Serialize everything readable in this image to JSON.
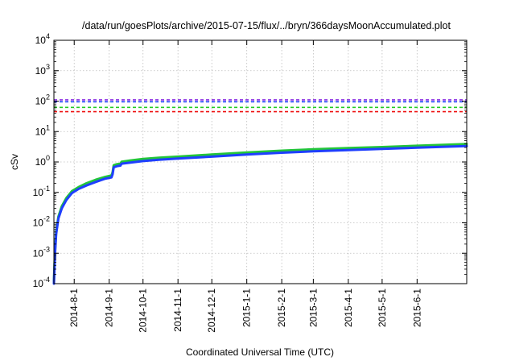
{
  "chart_data": {
    "type": "line",
    "title": "/data/run/goesPlots/archive/2015-07-15/flux/../bryn/366daysMoonAccumulated.plot",
    "xlabel": "Coordinated Universal Time (UTC)",
    "ylabel": "cSv",
    "yscale": "log",
    "ylim": [
      0.0001,
      10000
    ],
    "xlim": [
      "2014-07-14",
      "2015-07-15"
    ],
    "grid": true,
    "x_ticks": [
      "2014-8-1",
      "2014-9-1",
      "2014-10-1",
      "2014-11-1",
      "2014-12-1",
      "2015-1-1",
      "2015-2-1",
      "2015-3-1",
      "2015-4-1",
      "2015-5-1",
      "2015-6-1"
    ],
    "y_ticks": [
      {
        "value": 0.0001,
        "base": "10",
        "exp": "-4"
      },
      {
        "value": 0.001,
        "base": "10",
        "exp": "-3"
      },
      {
        "value": 0.01,
        "base": "10",
        "exp": "-2"
      },
      {
        "value": 0.1,
        "base": "10",
        "exp": "-1"
      },
      {
        "value": 1,
        "base": "10",
        "exp": "0"
      },
      {
        "value": 10,
        "base": "10",
        "exp": "1"
      },
      {
        "value": 100,
        "base": "10",
        "exp": "2"
      },
      {
        "value": 1000,
        "base": "10",
        "exp": "3"
      },
      {
        "value": 10000,
        "base": "10",
        "exp": "4"
      }
    ],
    "thresholds": [
      {
        "value": 110,
        "color": "#8a2be2"
      },
      {
        "value": 95,
        "color": "#1f3fff"
      },
      {
        "value": 62,
        "color": "#22cc22"
      },
      {
        "value": 45,
        "color": "#ee1111"
      }
    ],
    "series": [
      {
        "color": "#22c53a",
        "points": [
          [
            "2014-07-14",
            0.00012
          ],
          [
            "2014-07-15",
            0.0012
          ],
          [
            "2014-07-16",
            0.005
          ],
          [
            "2014-07-18",
            0.016
          ],
          [
            "2014-07-21",
            0.035
          ],
          [
            "2014-07-25",
            0.065
          ],
          [
            "2014-07-30",
            0.11
          ],
          [
            "2014-08-05",
            0.15
          ],
          [
            "2014-08-12",
            0.2
          ],
          [
            "2014-08-20",
            0.26
          ],
          [
            "2014-08-28",
            0.32
          ],
          [
            "2014-09-03",
            0.36
          ],
          [
            "2014-09-04",
            0.45
          ],
          [
            "2014-09-05",
            0.78
          ],
          [
            "2014-09-08",
            0.85
          ],
          [
            "2014-09-11",
            0.88
          ],
          [
            "2014-09-12",
            1.02
          ],
          [
            "2014-09-20",
            1.12
          ],
          [
            "2014-10-01",
            1.25
          ],
          [
            "2014-10-15",
            1.37
          ],
          [
            "2014-11-01",
            1.5
          ],
          [
            "2014-12-01",
            1.75
          ],
          [
            "2015-01-01",
            2.05
          ],
          [
            "2015-02-01",
            2.35
          ],
          [
            "2015-03-01",
            2.6
          ],
          [
            "2015-04-01",
            2.85
          ],
          [
            "2015-05-01",
            3.1
          ],
          [
            "2015-06-01",
            3.4
          ],
          [
            "2015-07-15",
            3.9
          ]
        ]
      },
      {
        "color": "#1f3fff",
        "points": [
          [
            "2014-07-14",
            0.0001
          ],
          [
            "2014-07-15",
            0.001
          ],
          [
            "2014-07-16",
            0.0043
          ],
          [
            "2014-07-18",
            0.014
          ],
          [
            "2014-07-21",
            0.03
          ],
          [
            "2014-07-25",
            0.056
          ],
          [
            "2014-07-30",
            0.095
          ],
          [
            "2014-08-05",
            0.13
          ],
          [
            "2014-08-12",
            0.17
          ],
          [
            "2014-08-20",
            0.22
          ],
          [
            "2014-08-28",
            0.28
          ],
          [
            "2014-09-03",
            0.31
          ],
          [
            "2014-09-04",
            0.39
          ],
          [
            "2014-09-05",
            0.67
          ],
          [
            "2014-09-08",
            0.73
          ],
          [
            "2014-09-11",
            0.76
          ],
          [
            "2014-09-12",
            0.88
          ],
          [
            "2014-09-20",
            0.96
          ],
          [
            "2014-10-01",
            1.07
          ],
          [
            "2014-10-15",
            1.18
          ],
          [
            "2014-11-01",
            1.29
          ],
          [
            "2014-12-01",
            1.5
          ],
          [
            "2015-01-01",
            1.76
          ],
          [
            "2015-02-01",
            2.02
          ],
          [
            "2015-03-01",
            2.24
          ],
          [
            "2015-04-01",
            2.46
          ],
          [
            "2015-05-01",
            2.68
          ],
          [
            "2015-06-01",
            2.95
          ],
          [
            "2015-07-15",
            3.35
          ]
        ]
      }
    ]
  }
}
